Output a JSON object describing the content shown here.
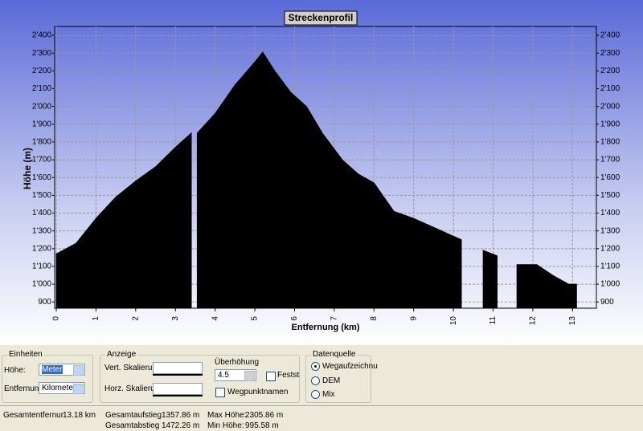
{
  "chart_data": {
    "type": "area",
    "title": "Streckenprofil",
    "x_label": "Entfernung (km)",
    "y_label": "Höhe (m)",
    "x": [
      0,
      0.5,
      1,
      1.5,
      2,
      2.5,
      3,
      3.4,
      3.5,
      3.55,
      4,
      4.5,
      5,
      5.2,
      5.5,
      5.9,
      6.3,
      6.7,
      7.2,
      7.6,
      8,
      8.5,
      9,
      9.5,
      10,
      10.2,
      10.5,
      10.75,
      11.1,
      11.4,
      11.6,
      12.1,
      12.5,
      12.9,
      13.1
    ],
    "values": [
      1170,
      1230,
      1370,
      1490,
      1580,
      1660,
      1770,
      1850,
      null,
      1850,
      1960,
      2120,
      2250,
      2305,
      2200,
      2080,
      2000,
      1850,
      1700,
      1620,
      1570,
      1410,
      1370,
      1320,
      1270,
      1250,
      null,
      1190,
      1160,
      null,
      1110,
      1110,
      1050,
      1000,
      1000
    ],
    "color": "#000000",
    "xlim": [
      0,
      13.6
    ],
    "ylim": [
      865,
      2450
    ],
    "xticks": [
      0,
      1,
      2,
      3,
      4,
      5,
      6,
      7,
      8,
      9,
      10,
      11,
      12,
      13
    ],
    "yticks": [
      900,
      {
        "value": 1000,
        "label": "1'000"
      },
      {
        "value": 1100,
        "label": "1'100"
      },
      {
        "value": 1200,
        "label": "1'200"
      },
      {
        "value": 1300,
        "label": "1'300"
      },
      {
        "value": 1400,
        "label": "1'400"
      },
      {
        "value": 1500,
        "label": "1'500"
      },
      {
        "value": 1600,
        "label": "1'600"
      },
      {
        "value": 1700,
        "label": "1'700"
      },
      {
        "value": 1800,
        "label": "1'800"
      },
      {
        "value": 1900,
        "label": "1'900"
      },
      {
        "value": 2000,
        "label": "2'000"
      },
      {
        "value": 2100,
        "label": "2'100"
      },
      {
        "value": 2200,
        "label": "2'200"
      },
      {
        "value": 2300,
        "label": "2'300"
      },
      {
        "value": 2400,
        "label": "2'400"
      }
    ],
    "grid": true
  },
  "panel": {
    "einheiten": {
      "title": "Einheiten",
      "hoehe_label": "Höhe:",
      "hoehe_value": "Meter",
      "entfernung_label": "Entfernung:",
      "entfernung_value": "Kilometer"
    },
    "anzeige": {
      "title": "Anzeige",
      "vert": "Vert. Skalieru",
      "horz": "Horz. Skalieru",
      "ueberhoehung": "Überhöhung",
      "ueberhoehung_value": "4.5",
      "festst": "Festst",
      "wegpunkt": "Wegpunktnamen"
    },
    "datenquelle": {
      "title": "Datenquelle",
      "options": [
        "Wegaufzeichnu",
        "DEM",
        "Mix"
      ]
    }
  },
  "status": {
    "gesamtentfernung_label": "Gesamtentfernur",
    "gesamtentfernung": "13.18 km",
    "aufstieg_label": "Gesamtaufstieg",
    "aufstieg": "1357.86 m",
    "abstieg_label": "Gesamtabstieg",
    "abstieg": "1472.26 m",
    "max_label": "Max Höhe:",
    "max": "2305.86 m",
    "min_label": "Min Höhe:",
    "min": "995.58 m"
  }
}
